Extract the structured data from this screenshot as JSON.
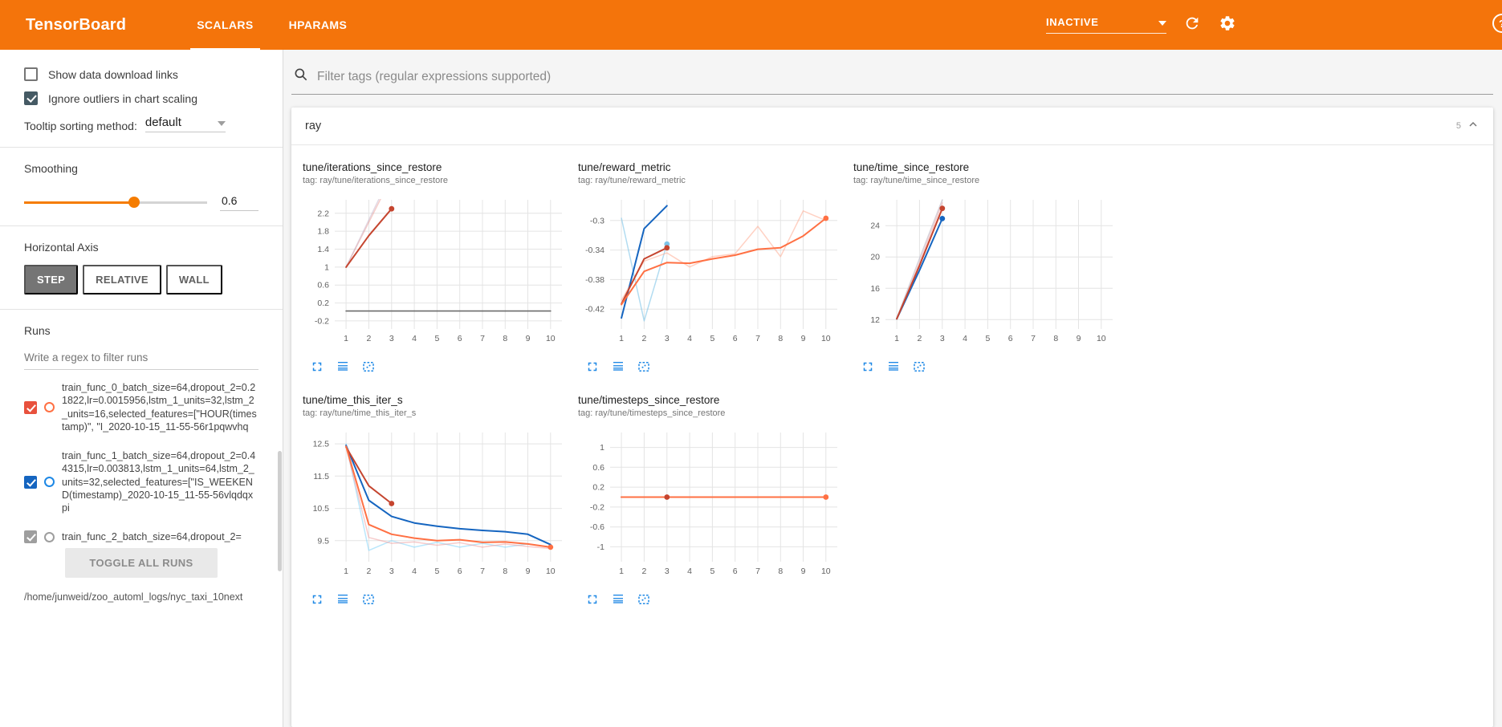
{
  "colors": {
    "header_bg": "#f4740b",
    "accent_orange": "#f57c00",
    "chart_icon_blue": "#1e88e5",
    "checkbox_checked": "#455a64",
    "run_red": "#c5452f",
    "run_orange": "#ff7043",
    "run_blue": "#1565c0",
    "run_gray": "#6b6b6b"
  },
  "header": {
    "brand": "TensorBoard",
    "tabs": [
      {
        "label": "SCALARS",
        "active": true
      },
      {
        "label": "HPARAMS",
        "active": false
      }
    ],
    "status": "INACTIVE",
    "icons": [
      "chevron-down-icon",
      "refresh-icon",
      "settings-icon",
      "help-icon"
    ]
  },
  "sidebar": {
    "show_download_label": "Show data download links",
    "show_download_checked": false,
    "ignore_outliers_label": "Ignore outliers in chart scaling",
    "ignore_outliers_checked": true,
    "tooltip_sort_label": "Tooltip sorting method:",
    "tooltip_sort_value": "default",
    "smoothing_label": "Smoothing",
    "smoothing_value": "0.6",
    "smoothing_percent": 60,
    "horizontal_axis_label": "Horizontal Axis",
    "axis_modes": [
      {
        "label": "STEP",
        "active": true
      },
      {
        "label": "RELATIVE",
        "active": false
      },
      {
        "label": "WALL",
        "active": false
      }
    ],
    "runs_label": "Runs",
    "runs_filter_placeholder": "Write a regex to filter runs",
    "runs": [
      {
        "name": "train_func_0_batch_size=64,dropout_2=0.21822,lr=0.0015956,lstm_1_units=32,lstm_2_units=16,selected_features=[\"HOUR(timestamp)\", \"I_2020-10-15_11-55-56r1pqwvhq",
        "checked": true,
        "checkbox_color": "#e8513d",
        "circle_color": "#ff7043"
      },
      {
        "name": "train_func_1_batch_size=64,dropout_2=0.44315,lr=0.003813,lstm_1_units=64,lstm_2_units=32,selected_features=[\"IS_WEEKEND(timestamp)_2020-10-15_11-55-56vlqdqxpi",
        "checked": true,
        "checkbox_color": "#1565c0",
        "circle_color": "#1e88e5"
      },
      {
        "name": "train_func_2_batch_size=64,dropout_2=",
        "checked": true,
        "checkbox_color": "#9e9e9e",
        "circle_color": "#9e9e9e"
      }
    ],
    "toggle_all_label": "TOGGLE ALL RUNS",
    "log_path": "/home/junweid/zoo_automl_logs/nyc_taxi_10next"
  },
  "main": {
    "filter_placeholder": "Filter tags (regular expressions supported)",
    "section_title": "ray",
    "section_count": "5",
    "chart_action_icons": [
      "expand-icon",
      "log-scale-icon",
      "fit-domain-icon"
    ]
  },
  "chart_data": [
    {
      "type": "line",
      "title": "tune/iterations_since_restore",
      "subtitle": "tag: ray/tune/iterations_since_restore",
      "xlim": [
        0.5,
        10.5
      ],
      "ylim": [
        -0.38,
        2.5
      ],
      "x_ticks": [
        1,
        2,
        3,
        4,
        5,
        6,
        7,
        8,
        9,
        10
      ],
      "y_ticks": [
        -0.2,
        0.2,
        0.6,
        1,
        1.4,
        1.8,
        2.2
      ],
      "series": [
        {
          "name": "train_func_0_raw",
          "color": "#e57368",
          "opacity": 0.35,
          "width": 1.5,
          "points": [
            [
              1,
              1
            ],
            [
              2,
              2
            ],
            [
              3,
              3
            ]
          ]
        },
        {
          "name": "train_func_1_raw",
          "color": "#c5b3c9",
          "opacity": 0.5,
          "width": 1.5,
          "points": [
            [
              1,
              1
            ],
            [
              2,
              2.05
            ],
            [
              3,
              3.1
            ]
          ]
        },
        {
          "name": "train_func_0_smoothed",
          "color": "#c5452f",
          "opacity": 1,
          "width": 2,
          "points": [
            [
              1,
              1
            ],
            [
              2,
              1.7
            ],
            [
              3,
              2.3
            ]
          ],
          "end_dot": true
        },
        {
          "name": "train_func_2",
          "color": "#6b6b6b",
          "opacity": 1,
          "width": 1.6,
          "points": [
            [
              1,
              0.02
            ],
            [
              10,
              0.02
            ]
          ]
        }
      ]
    },
    {
      "type": "line",
      "title": "tune/reward_metric",
      "subtitle": "tag: ray/tune/reward_metric",
      "xlim": [
        0.5,
        10.5
      ],
      "ylim": [
        -0.447,
        -0.272
      ],
      "x_ticks": [
        1,
        2,
        3,
        4,
        5,
        6,
        7,
        8,
        9,
        10
      ],
      "y_ticks": [
        -0.42,
        -0.38,
        -0.34,
        -0.3
      ],
      "series": [
        {
          "name": "train_func_1_raw",
          "color": "#7ec4e8",
          "opacity": 0.6,
          "width": 1.5,
          "points": [
            [
              1,
              -0.297
            ],
            [
              2,
              -0.436
            ],
            [
              3,
              -0.332
            ]
          ],
          "end_dot": true
        },
        {
          "name": "orange_raw",
          "color": "#ffab91",
          "opacity": 0.55,
          "width": 1.5,
          "points": [
            [
              1,
              -0.408
            ],
            [
              2,
              -0.355
            ],
            [
              3,
              -0.344
            ],
            [
              4,
              -0.363
            ],
            [
              5,
              -0.349
            ],
            [
              6,
              -0.345
            ],
            [
              7,
              -0.308
            ],
            [
              8,
              -0.349
            ],
            [
              9,
              -0.287
            ],
            [
              10,
              -0.3
            ]
          ]
        },
        {
          "name": "train_func_1_smoothed",
          "color": "#1565c0",
          "opacity": 1,
          "width": 2,
          "points": [
            [
              1,
              -0.432
            ],
            [
              2,
              -0.311
            ],
            [
              3,
              -0.28
            ]
          ]
        },
        {
          "name": "train_func_0_smoothed",
          "color": "#c5452f",
          "opacity": 1,
          "width": 2,
          "points": [
            [
              1,
              -0.413
            ],
            [
              2,
              -0.352
            ],
            [
              3,
              -0.337
            ]
          ],
          "end_dot": true
        },
        {
          "name": "orange_smoothed",
          "color": "#ff7043",
          "opacity": 1,
          "width": 2,
          "points": [
            [
              1,
              -0.414
            ],
            [
              2,
              -0.369
            ],
            [
              3,
              -0.357
            ],
            [
              4,
              -0.358
            ],
            [
              5,
              -0.352
            ],
            [
              6,
              -0.347
            ],
            [
              7,
              -0.339
            ],
            [
              8,
              -0.337
            ],
            [
              9,
              -0.321
            ],
            [
              10,
              -0.297
            ]
          ],
          "end_dot": true
        }
      ]
    },
    {
      "type": "line",
      "title": "tune/time_since_restore",
      "subtitle": "tag: ray/tune/time_since_restore",
      "xlim": [
        0.5,
        10.5
      ],
      "ylim": [
        10.8,
        27.3
      ],
      "x_ticks": [
        1,
        2,
        3,
        4,
        5,
        6,
        7,
        8,
        9,
        10
      ],
      "y_ticks": [
        12,
        16,
        20,
        24
      ],
      "series": [
        {
          "name": "raw_gray",
          "color": "#b4aebe",
          "opacity": 0.55,
          "width": 1.5,
          "points": [
            [
              1,
              12.2
            ],
            [
              2,
              19.8
            ],
            [
              3,
              27.3
            ]
          ]
        },
        {
          "name": "raw_pink",
          "color": "#ef9a9a",
          "opacity": 0.5,
          "width": 1.5,
          "points": [
            [
              1,
              12.1
            ],
            [
              2,
              19.3
            ],
            [
              3,
              26.9
            ]
          ]
        },
        {
          "name": "train_func_1_smoothed",
          "color": "#1565c0",
          "opacity": 1,
          "width": 2,
          "points": [
            [
              1,
              12.1
            ],
            [
              2,
              18.3
            ],
            [
              3,
              24.9
            ]
          ],
          "end_dot": true
        },
        {
          "name": "train_func_0_smoothed",
          "color": "#c5452f",
          "opacity": 1,
          "width": 2,
          "points": [
            [
              1,
              12.1
            ],
            [
              2,
              18.9
            ],
            [
              3,
              26.2
            ]
          ],
          "end_dot": true
        }
      ]
    },
    {
      "type": "line",
      "title": "tune/time_this_iter_s",
      "subtitle": "tag: ray/tune/time_this_iter_s",
      "xlim": [
        0.5,
        10.5
      ],
      "ylim": [
        8.85,
        12.85
      ],
      "x_ticks": [
        1,
        2,
        3,
        4,
        5,
        6,
        7,
        8,
        9,
        10
      ],
      "y_ticks": [
        9.5,
        10.5,
        11.5,
        12.5
      ],
      "series": [
        {
          "name": "raw_light_blue",
          "color": "#81d4fa",
          "opacity": 0.55,
          "width": 1.5,
          "points": [
            [
              1,
              12.5
            ],
            [
              2,
              9.2
            ],
            [
              3,
              9.5
            ],
            [
              4,
              9.3
            ],
            [
              5,
              9.45
            ],
            [
              6,
              9.3
            ],
            [
              7,
              9.42
            ],
            [
              8,
              9.3
            ],
            [
              9,
              9.4
            ],
            [
              10,
              9.3
            ]
          ]
        },
        {
          "name": "raw_pink",
          "color": "#ef9a9a",
          "opacity": 0.5,
          "width": 1.5,
          "points": [
            [
              1,
              12.4
            ],
            [
              2,
              9.6
            ],
            [
              3,
              9.42
            ],
            [
              4,
              9.46
            ],
            [
              5,
              9.36
            ],
            [
              6,
              9.44
            ],
            [
              7,
              9.3
            ],
            [
              8,
              9.4
            ],
            [
              9,
              9.32
            ],
            [
              10,
              9.26
            ]
          ]
        },
        {
          "name": "train_func_1_smoothed",
          "color": "#1565c0",
          "opacity": 1,
          "width": 2,
          "points": [
            [
              1,
              12.45
            ],
            [
              2,
              10.75
            ],
            [
              3,
              10.25
            ],
            [
              4,
              10.05
            ],
            [
              5,
              9.95
            ],
            [
              6,
              9.87
            ],
            [
              7,
              9.82
            ],
            [
              8,
              9.78
            ],
            [
              9,
              9.7
            ],
            [
              10,
              9.38
            ]
          ]
        },
        {
          "name": "train_func_0_smoothed",
          "color": "#c5452f",
          "opacity": 1,
          "width": 2,
          "points": [
            [
              1,
              12.4
            ],
            [
              2,
              11.2
            ],
            [
              3,
              10.65
            ]
          ],
          "end_dot": true
        },
        {
          "name": "orange_smoothed",
          "color": "#ff7043",
          "opacity": 1,
          "width": 2,
          "points": [
            [
              1,
              12.42
            ],
            [
              2,
              10.0
            ],
            [
              3,
              9.7
            ],
            [
              4,
              9.58
            ],
            [
              5,
              9.5
            ],
            [
              6,
              9.53
            ],
            [
              7,
              9.45
            ],
            [
              8,
              9.46
            ],
            [
              9,
              9.4
            ],
            [
              10,
              9.3
            ]
          ],
          "end_dot": true
        }
      ]
    },
    {
      "type": "line",
      "title": "tune/timesteps_since_restore",
      "subtitle": "tag: ray/tune/timesteps_since_restore",
      "xlim": [
        0.5,
        10.5
      ],
      "ylim": [
        -1.3,
        1.3
      ],
      "x_ticks": [
        1,
        2,
        3,
        4,
        5,
        6,
        7,
        8,
        9,
        10
      ],
      "y_ticks": [
        -1,
        -0.6,
        -0.2,
        0.2,
        0.6,
        1
      ],
      "series": [
        {
          "name": "train_func_2",
          "color": "#6b6b6b",
          "opacity": 1,
          "width": 1.6,
          "points": [
            [
              1,
              0
            ],
            [
              10,
              0
            ]
          ]
        },
        {
          "name": "train_func_0_smoothed",
          "color": "#c5452f",
          "opacity": 1,
          "width": 2,
          "points": [
            [
              1,
              0
            ],
            [
              3,
              0
            ]
          ],
          "end_dot": true
        },
        {
          "name": "orange_smoothed",
          "color": "#ff7043",
          "opacity": 1,
          "width": 2,
          "points": [
            [
              1,
              0
            ],
            [
              10,
              0
            ]
          ],
          "end_dot": true
        }
      ]
    }
  ]
}
